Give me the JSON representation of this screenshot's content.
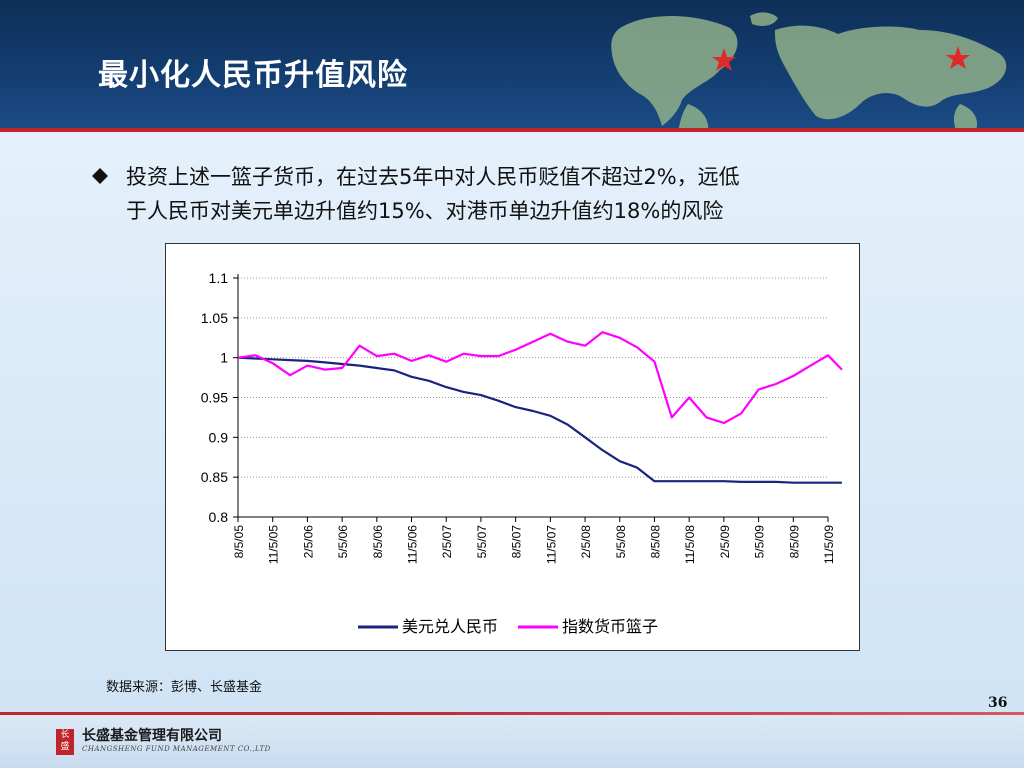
{
  "slide": {
    "title": "最小化人民币升值风险",
    "bullet_lines": [
      "投资上述一篮子货币，在过去5年中对人民币贬值不超过2%，远低",
      "于人民币对美元单边升值约15%、对港币单边升值约18%的风险"
    ],
    "source": "数据来源：彭博、长盛基金",
    "page_number": "36",
    "footer": {
      "company_cn": "长盛基金管理有限公司",
      "company_en": "CHANGSHENG FUND MANAGEMENT CO.,LTD"
    },
    "colors": {
      "banner": "#143f73",
      "accent_red": "#c0242a"
    },
    "icons": [
      "diamond-bullet-icon",
      "red-star-icon",
      "world-map-image"
    ]
  },
  "chart_data": {
    "type": "line",
    "title": "",
    "xlabel": "",
    "ylabel": "",
    "ylim": [
      0.8,
      1.1
    ],
    "yticks": [
      "1.1",
      "1.05",
      "1",
      "0.95",
      "0.9",
      "0.85",
      "0.8"
    ],
    "xticks": [
      "8/5/05",
      "11/5/05",
      "2/5/06",
      "5/5/06",
      "8/5/06",
      "11/5/06",
      "2/5/07",
      "5/5/07",
      "8/5/07",
      "11/5/07",
      "2/5/08",
      "5/5/08",
      "8/5/08",
      "11/5/08",
      "2/5/09",
      "5/5/09",
      "8/5/09",
      "11/5/09"
    ],
    "grid": "horizontal dotted",
    "legend_position": "bottom",
    "x": [
      0,
      0.5,
      1,
      1.5,
      2,
      2.5,
      3,
      3.5,
      4,
      4.5,
      5,
      5.5,
      6,
      6.5,
      7,
      7.5,
      8,
      8.5,
      9,
      9.5,
      10,
      10.5,
      11,
      11.5,
      12,
      12.5,
      13,
      13.5,
      14,
      14.5,
      15,
      15.5,
      16,
      16.5,
      17,
      17.4
    ],
    "series": [
      {
        "name": "美元兑人民币",
        "color": "#1a237e",
        "values": [
          1.0,
          0.999,
          0.998,
          0.997,
          0.996,
          0.994,
          0.992,
          0.99,
          0.987,
          0.984,
          0.976,
          0.971,
          0.963,
          0.957,
          0.953,
          0.946,
          0.938,
          0.933,
          0.927,
          0.916,
          0.9,
          0.884,
          0.87,
          0.862,
          0.845,
          0.845,
          0.845,
          0.845,
          0.845,
          0.844,
          0.844,
          0.844,
          0.843,
          0.843,
          0.843,
          0.843
        ]
      },
      {
        "name": "指数货币篮子",
        "color": "#ff00ff",
        "values": [
          1.0,
          1.003,
          0.993,
          0.978,
          0.99,
          0.985,
          0.987,
          1.015,
          1.002,
          1.005,
          0.996,
          1.003,
          0.995,
          1.005,
          1.002,
          1.002,
          1.01,
          1.02,
          1.03,
          1.02,
          1.015,
          1.032,
          1.025,
          1.013,
          0.995,
          0.925,
          0.95,
          0.925,
          0.918,
          0.93,
          0.96,
          0.967,
          0.977,
          0.99,
          1.003,
          0.985
        ]
      }
    ]
  }
}
